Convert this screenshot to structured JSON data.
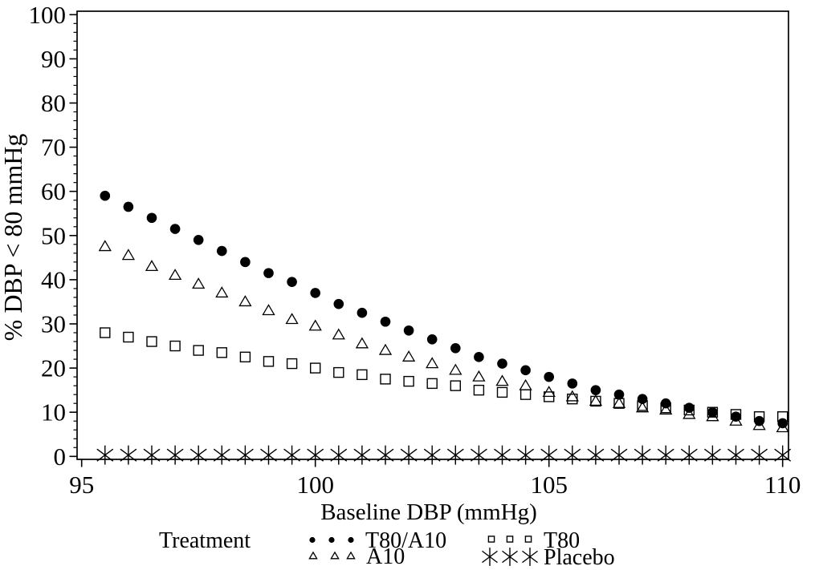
{
  "colors": {
    "ink": "#000000",
    "paper": "#ffffff"
  },
  "chart_data": {
    "type": "scatter",
    "title": "",
    "xlabel": "Baseline DBP (mmHg)",
    "ylabel": "% DBP < 80 mmHg",
    "xlim": [
      95,
      110
    ],
    "ylim": [
      0,
      100
    ],
    "grid": "off",
    "legend_position": "bottom",
    "legend_title": "Treatment",
    "x_major_ticks": [
      95,
      100,
      105,
      110
    ],
    "x_minor_tick_step": 0.5,
    "y_major_ticks": [
      0,
      10,
      20,
      30,
      40,
      50,
      60,
      70,
      80,
      90,
      100
    ],
    "y_minor_tick_step": 2,
    "x": [
      95.5,
      96,
      96.5,
      97,
      97.5,
      98,
      98.5,
      99,
      99.5,
      100,
      100.5,
      101,
      101.5,
      102,
      102.5,
      103,
      103.5,
      104,
      104.5,
      105,
      105.5,
      106,
      106.5,
      107,
      107.5,
      108,
      108.5,
      109,
      109.5,
      110
    ],
    "series": [
      {
        "name": "T80/A10",
        "marker": "filled-circle",
        "values": [
          59,
          56.5,
          54,
          51.5,
          49,
          46.5,
          44,
          41.5,
          39.5,
          37,
          34.5,
          32.5,
          30.5,
          28.5,
          26.5,
          24.5,
          22.5,
          21,
          19.5,
          18,
          16.5,
          15,
          14,
          13,
          12,
          11,
          10,
          9,
          8,
          7.5
        ]
      },
      {
        "name": "T80",
        "marker": "open-square",
        "values": [
          28,
          27,
          26,
          25,
          24,
          23.5,
          22.5,
          21.5,
          21,
          20,
          19,
          18.5,
          17.5,
          17,
          16.5,
          16,
          15,
          14.5,
          14,
          13.5,
          13,
          12.5,
          12,
          11.5,
          11,
          10.5,
          10,
          9.5,
          9,
          9
        ]
      },
      {
        "name": "A10",
        "marker": "open-triangle",
        "values": [
          47.5,
          45.5,
          43,
          41,
          39,
          37,
          35,
          33,
          31,
          29.5,
          27.5,
          25.5,
          24,
          22.5,
          21,
          19.5,
          18,
          17,
          16,
          14.5,
          13.5,
          12.5,
          12,
          11,
          10.5,
          9.5,
          9,
          8,
          7,
          6.5
        ]
      },
      {
        "name": "Placebo",
        "marker": "asterisk",
        "values": [
          0.3,
          0.3,
          0.3,
          0.3,
          0.3,
          0.3,
          0.3,
          0.3,
          0.3,
          0.3,
          0.3,
          0.3,
          0.3,
          0.3,
          0.3,
          0.3,
          0.3,
          0.3,
          0.3,
          0.3,
          0.3,
          0.3,
          0.3,
          0.3,
          0.3,
          0.3,
          0.3,
          0.3,
          0.3,
          0.3
        ]
      }
    ],
    "legend_rows": [
      [
        "T80/A10",
        "T80"
      ],
      [
        "A10",
        "Placebo"
      ]
    ]
  }
}
